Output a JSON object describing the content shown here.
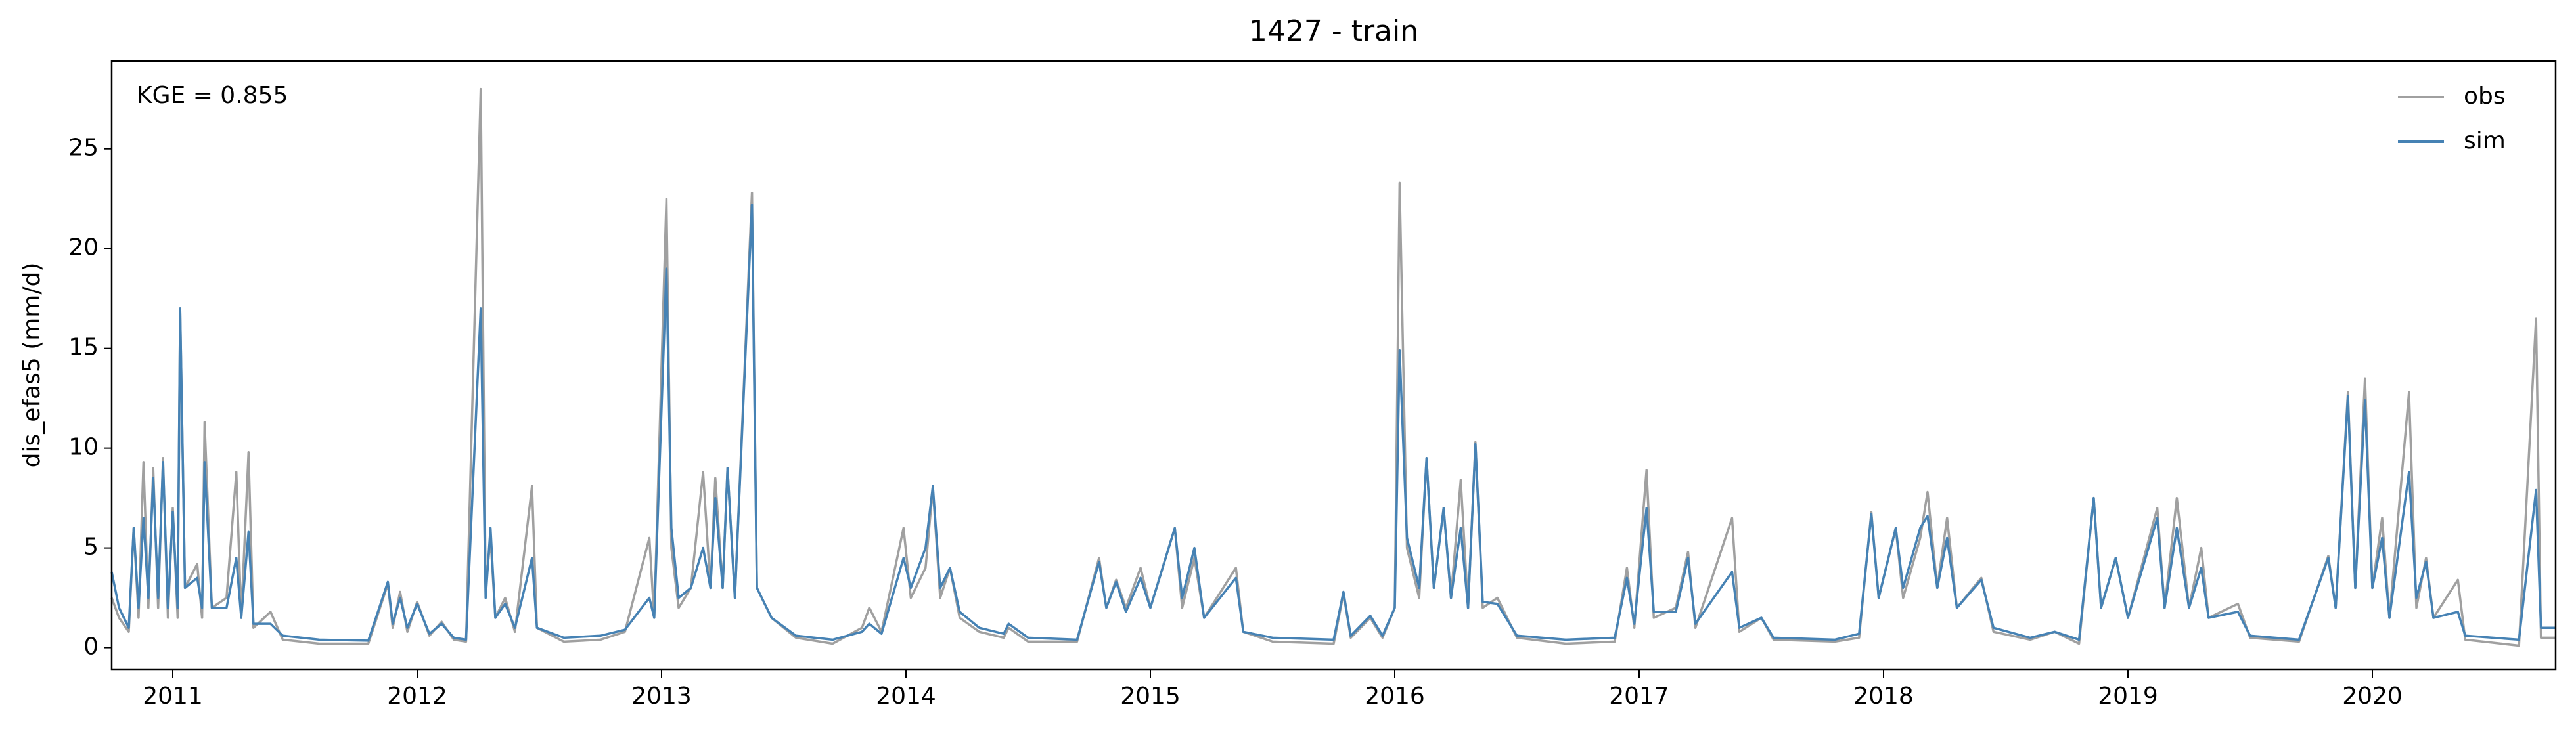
{
  "chart_data": {
    "type": "line",
    "title": "1427 - train",
    "ylabel": "dis_efas5 (mm/d)",
    "annotation": "KGE = 0.855",
    "x": [
      2010.75,
      2010.78,
      2010.82,
      2010.84,
      2010.86,
      2010.88,
      2010.9,
      2010.92,
      2010.94,
      2010.96,
      2010.98,
      2011.0,
      2011.02,
      2011.03,
      2011.05,
      2011.1,
      2011.12,
      2011.13,
      2011.16,
      2011.22,
      2011.26,
      2011.28,
      2011.31,
      2011.33,
      2011.4,
      2011.45,
      2011.6,
      2011.8,
      2011.88,
      2011.9,
      2011.93,
      2011.96,
      2012.0,
      2012.05,
      2012.1,
      2012.15,
      2012.2,
      2012.26,
      2012.28,
      2012.3,
      2012.32,
      2012.36,
      2012.4,
      2012.47,
      2012.49,
      2012.6,
      2012.75,
      2012.85,
      2012.95,
      2012.97,
      2013.02,
      2013.04,
      2013.07,
      2013.12,
      2013.17,
      2013.2,
      2013.22,
      2013.25,
      2013.27,
      2013.3,
      2013.37,
      2013.39,
      2013.45,
      2013.55,
      2013.7,
      2013.82,
      2013.85,
      2013.9,
      2013.99,
      2014.02,
      2014.08,
      2014.11,
      2014.14,
      2014.18,
      2014.22,
      2014.3,
      2014.4,
      2014.42,
      2014.5,
      2014.7,
      2014.79,
      2014.82,
      2014.86,
      2014.9,
      2014.96,
      2015.0,
      2015.1,
      2015.13,
      2015.18,
      2015.22,
      2015.35,
      2015.38,
      2015.5,
      2015.75,
      2015.79,
      2015.82,
      2015.9,
      2015.95,
      2016.0,
      2016.02,
      2016.05,
      2016.1,
      2016.13,
      2016.16,
      2016.2,
      2016.23,
      2016.27,
      2016.3,
      2016.33,
      2016.36,
      2016.42,
      2016.5,
      2016.7,
      2016.9,
      2016.95,
      2016.98,
      2017.03,
      2017.06,
      2017.15,
      2017.2,
      2017.23,
      2017.38,
      2017.41,
      2017.5,
      2017.55,
      2017.8,
      2017.9,
      2017.95,
      2017.98,
      2018.05,
      2018.08,
      2018.15,
      2018.18,
      2018.22,
      2018.26,
      2018.3,
      2018.4,
      2018.45,
      2018.6,
      2018.7,
      2018.8,
      2018.86,
      2018.89,
      2018.95,
      2019.0,
      2019.12,
      2019.15,
      2019.2,
      2019.25,
      2019.3,
      2019.33,
      2019.45,
      2019.5,
      2019.7,
      2019.82,
      2019.85,
      2019.9,
      2019.93,
      2019.97,
      2020.0,
      2020.04,
      2020.07,
      2020.15,
      2020.18,
      2020.22,
      2020.25,
      2020.35,
      2020.38,
      2020.6,
      2020.67,
      2020.69,
      2020.75
    ],
    "series": [
      {
        "name": "obs",
        "color": "#a0a0a0",
        "values": [
          2.5,
          1.5,
          0.8,
          6,
          1.5,
          9.3,
          2,
          9.0,
          2,
          9.5,
          1.5,
          7,
          1.5,
          17,
          3,
          4.2,
          1.5,
          11.3,
          2,
          2.5,
          8.8,
          1.5,
          9.8,
          1,
          1.8,
          0.4,
          0.2,
          0.2,
          3.2,
          1,
          2.8,
          0.8,
          2.3,
          0.6,
          1.3,
          0.4,
          0.3,
          28,
          3,
          5.5,
          1.5,
          2.5,
          0.8,
          8.1,
          1,
          0.3,
          0.4,
          0.8,
          5.5,
          1.5,
          22.5,
          5,
          2,
          3,
          8.8,
          3,
          8.5,
          3,
          9,
          2.5,
          22.8,
          3,
          1.5,
          0.5,
          0.2,
          1,
          2,
          0.8,
          6,
          2.5,
          4,
          8,
          2.5,
          4,
          1.5,
          0.8,
          0.5,
          1,
          0.3,
          0.3,
          4.5,
          2,
          3.4,
          2,
          4,
          2,
          6,
          2,
          4.5,
          1.5,
          4,
          0.8,
          0.3,
          0.2,
          2.7,
          0.5,
          1.5,
          0.5,
          2,
          23.3,
          5,
          2.5,
          9.5,
          3,
          7,
          2.5,
          8.4,
          2,
          10.3,
          2,
          2.5,
          0.5,
          0.2,
          0.3,
          4,
          1,
          8.9,
          1.5,
          2,
          4.8,
          1,
          6.5,
          0.8,
          1.5,
          0.4,
          0.3,
          0.5,
          6.8,
          2.5,
          6,
          2.5,
          5.5,
          7.8,
          3,
          6.5,
          2,
          3.5,
          0.8,
          0.4,
          0.8,
          0.2,
          7.5,
          2,
          4.5,
          1.5,
          7,
          2,
          7.5,
          2,
          5,
          1.5,
          2.2,
          0.5,
          0.3,
          4.6,
          2,
          12.8,
          3,
          13.5,
          3,
          6.5,
          1.5,
          12.8,
          2,
          4.5,
          1.5,
          3.4,
          0.4,
          0.1,
          16.5,
          0.5,
          0.5
        ]
      },
      {
        "name": "sim",
        "color": "#4682b4",
        "values": [
          3.8,
          2.0,
          1.0,
          6,
          2,
          6.5,
          2.5,
          8.5,
          2.5,
          9.3,
          2,
          6.8,
          2,
          17,
          3,
          3.5,
          2,
          9.3,
          2,
          2,
          4.5,
          1.5,
          5.8,
          1.2,
          1.2,
          0.6,
          0.4,
          0.35,
          3.3,
          1.2,
          2.5,
          1.0,
          2.2,
          0.7,
          1.2,
          0.5,
          0.4,
          17,
          2.5,
          6,
          1.5,
          2.2,
          1.0,
          4.5,
          1,
          0.5,
          0.6,
          0.9,
          2.5,
          1.5,
          19,
          6,
          2.5,
          3,
          5,
          3,
          7.5,
          3,
          9,
          2.5,
          22.2,
          3,
          1.5,
          0.6,
          0.4,
          0.8,
          1.2,
          0.7,
          4.5,
          3,
          5,
          8.1,
          3,
          4,
          1.8,
          1.0,
          0.7,
          1.2,
          0.5,
          0.4,
          4.3,
          2,
          3.3,
          1.8,
          3.5,
          2,
          6,
          2.5,
          5,
          1.5,
          3.5,
          0.8,
          0.5,
          0.4,
          2.8,
          0.6,
          1.6,
          0.6,
          2,
          14.9,
          5.5,
          3,
          9.5,
          3,
          7,
          2.5,
          6,
          2,
          10.2,
          2.3,
          2.2,
          0.6,
          0.4,
          0.5,
          3.5,
          1.2,
          7,
          1.8,
          1.8,
          4.5,
          1.2,
          3.8,
          1,
          1.5,
          0.5,
          0.4,
          0.7,
          6.7,
          2.5,
          6,
          3,
          6,
          6.6,
          3,
          5.5,
          2,
          3.4,
          1,
          0.5,
          0.8,
          0.4,
          7.5,
          2,
          4.5,
          1.5,
          6.5,
          2,
          6,
          2,
          4,
          1.5,
          1.8,
          0.6,
          0.4,
          4.5,
          2,
          12.6,
          3,
          12.4,
          3,
          5.5,
          1.5,
          8.8,
          2.5,
          4.3,
          1.5,
          1.8,
          0.6,
          0.4,
          7.9,
          1,
          1.0
        ]
      }
    ],
    "xlim": [
      2010.75,
      2020.75
    ],
    "xticks": [
      2011,
      2012,
      2013,
      2014,
      2015,
      2016,
      2017,
      2018,
      2019,
      2020
    ],
    "ylim": [
      -1.1,
      29.4
    ],
    "yticks": [
      0,
      5,
      10,
      15,
      20,
      25
    ],
    "legend": "upper right"
  }
}
